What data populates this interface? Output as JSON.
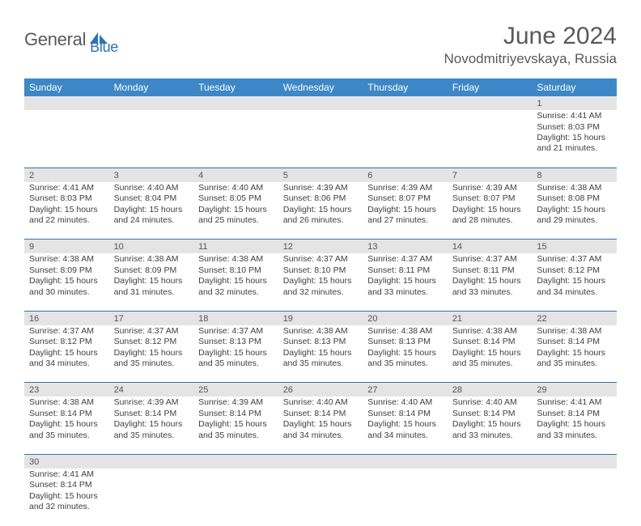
{
  "header": {
    "brand_part1": "General",
    "brand_part2": "Blue",
    "month_title": "June 2024",
    "location": "Novodmitriyevskaya, Russia"
  },
  "weekdays": [
    "Sunday",
    "Monday",
    "Tuesday",
    "Wednesday",
    "Thursday",
    "Friday",
    "Saturday"
  ],
  "colors": {
    "header_bg": "#3D87C7",
    "header_fg": "#ffffff",
    "daybar_bg": "#e4e4e4",
    "rule": "#2d72b6",
    "brand_gray": "#5a5a5a",
    "brand_blue": "#2d72b6",
    "text": "#404040"
  },
  "weeks": [
    [
      null,
      null,
      null,
      null,
      null,
      null,
      {
        "n": "1",
        "sunrise": "4:41 AM",
        "sunset": "8:03 PM",
        "daylight": "15 hours and 21 minutes."
      }
    ],
    [
      {
        "n": "2",
        "sunrise": "4:41 AM",
        "sunset": "8:03 PM",
        "daylight": "15 hours and 22 minutes."
      },
      {
        "n": "3",
        "sunrise": "4:40 AM",
        "sunset": "8:04 PM",
        "daylight": "15 hours and 24 minutes."
      },
      {
        "n": "4",
        "sunrise": "4:40 AM",
        "sunset": "8:05 PM",
        "daylight": "15 hours and 25 minutes."
      },
      {
        "n": "5",
        "sunrise": "4:39 AM",
        "sunset": "8:06 PM",
        "daylight": "15 hours and 26 minutes."
      },
      {
        "n": "6",
        "sunrise": "4:39 AM",
        "sunset": "8:07 PM",
        "daylight": "15 hours and 27 minutes."
      },
      {
        "n": "7",
        "sunrise": "4:39 AM",
        "sunset": "8:07 PM",
        "daylight": "15 hours and 28 minutes."
      },
      {
        "n": "8",
        "sunrise": "4:38 AM",
        "sunset": "8:08 PM",
        "daylight": "15 hours and 29 minutes."
      }
    ],
    [
      {
        "n": "9",
        "sunrise": "4:38 AM",
        "sunset": "8:09 PM",
        "daylight": "15 hours and 30 minutes."
      },
      {
        "n": "10",
        "sunrise": "4:38 AM",
        "sunset": "8:09 PM",
        "daylight": "15 hours and 31 minutes."
      },
      {
        "n": "11",
        "sunrise": "4:38 AM",
        "sunset": "8:10 PM",
        "daylight": "15 hours and 32 minutes."
      },
      {
        "n": "12",
        "sunrise": "4:37 AM",
        "sunset": "8:10 PM",
        "daylight": "15 hours and 32 minutes."
      },
      {
        "n": "13",
        "sunrise": "4:37 AM",
        "sunset": "8:11 PM",
        "daylight": "15 hours and 33 minutes."
      },
      {
        "n": "14",
        "sunrise": "4:37 AM",
        "sunset": "8:11 PM",
        "daylight": "15 hours and 33 minutes."
      },
      {
        "n": "15",
        "sunrise": "4:37 AM",
        "sunset": "8:12 PM",
        "daylight": "15 hours and 34 minutes."
      }
    ],
    [
      {
        "n": "16",
        "sunrise": "4:37 AM",
        "sunset": "8:12 PM",
        "daylight": "15 hours and 34 minutes."
      },
      {
        "n": "17",
        "sunrise": "4:37 AM",
        "sunset": "8:12 PM",
        "daylight": "15 hours and 35 minutes."
      },
      {
        "n": "18",
        "sunrise": "4:37 AM",
        "sunset": "8:13 PM",
        "daylight": "15 hours and 35 minutes."
      },
      {
        "n": "19",
        "sunrise": "4:38 AM",
        "sunset": "8:13 PM",
        "daylight": "15 hours and 35 minutes."
      },
      {
        "n": "20",
        "sunrise": "4:38 AM",
        "sunset": "8:13 PM",
        "daylight": "15 hours and 35 minutes."
      },
      {
        "n": "21",
        "sunrise": "4:38 AM",
        "sunset": "8:14 PM",
        "daylight": "15 hours and 35 minutes."
      },
      {
        "n": "22",
        "sunrise": "4:38 AM",
        "sunset": "8:14 PM",
        "daylight": "15 hours and 35 minutes."
      }
    ],
    [
      {
        "n": "23",
        "sunrise": "4:38 AM",
        "sunset": "8:14 PM",
        "daylight": "15 hours and 35 minutes."
      },
      {
        "n": "24",
        "sunrise": "4:39 AM",
        "sunset": "8:14 PM",
        "daylight": "15 hours and 35 minutes."
      },
      {
        "n": "25",
        "sunrise": "4:39 AM",
        "sunset": "8:14 PM",
        "daylight": "15 hours and 35 minutes."
      },
      {
        "n": "26",
        "sunrise": "4:40 AM",
        "sunset": "8:14 PM",
        "daylight": "15 hours and 34 minutes."
      },
      {
        "n": "27",
        "sunrise": "4:40 AM",
        "sunset": "8:14 PM",
        "daylight": "15 hours and 34 minutes."
      },
      {
        "n": "28",
        "sunrise": "4:40 AM",
        "sunset": "8:14 PM",
        "daylight": "15 hours and 33 minutes."
      },
      {
        "n": "29",
        "sunrise": "4:41 AM",
        "sunset": "8:14 PM",
        "daylight": "15 hours and 33 minutes."
      }
    ],
    [
      {
        "n": "30",
        "sunrise": "4:41 AM",
        "sunset": "8:14 PM",
        "daylight": "15 hours and 32 minutes."
      },
      null,
      null,
      null,
      null,
      null,
      null
    ]
  ],
  "labels": {
    "sunrise": "Sunrise:",
    "sunset": "Sunset:",
    "daylight": "Daylight:"
  }
}
